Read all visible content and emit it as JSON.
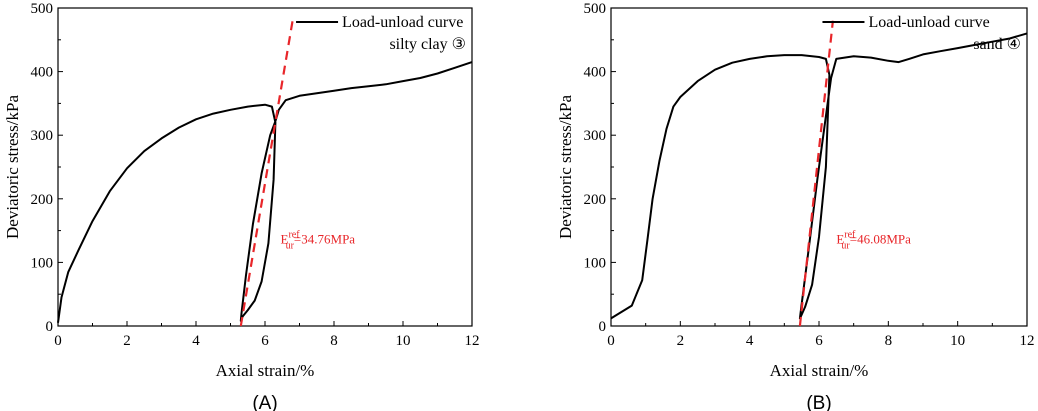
{
  "chart_data": [
    {
      "type": "line",
      "panel_label": "(A)",
      "xlabel": "Axial strain/%",
      "ylabel": "Deviatoric stress/kPa",
      "xlim": [
        0,
        12
      ],
      "ylim": [
        0,
        500
      ],
      "xticks": [
        "0",
        "2",
        "4",
        "6",
        "8",
        "10",
        "12"
      ],
      "yticks": [
        "0",
        "100",
        "200",
        "300",
        "400",
        "500"
      ],
      "grid": false,
      "legend_position": "top-right",
      "legend": [
        "Load-unload curve",
        "silty clay ③"
      ],
      "annotation": {
        "base": "E",
        "sup": "ref",
        "sub": "ur",
        "value": "=34.76MPa",
        "color": "#e8262a"
      },
      "series": [
        {
          "name": "Load-unload curve",
          "color": "#000000",
          "x": [
            0,
            0.1,
            0.3,
            0.6,
            1.0,
            1.5,
            2.0,
            2.5,
            3.0,
            3.5,
            4.0,
            4.5,
            5.0,
            5.5,
            6.0,
            6.2,
            6.3,
            6.25,
            6.1,
            5.9,
            5.7,
            5.5,
            5.35,
            5.3,
            5.32,
            5.45,
            5.65,
            5.9,
            6.15,
            6.3,
            6.4,
            6.6,
            7.0,
            7.5,
            8.0,
            8.5,
            9.0,
            9.5,
            10.0,
            10.5,
            11.0,
            11.5,
            12.0
          ],
          "y": [
            5,
            45,
            85,
            120,
            165,
            212,
            248,
            275,
            295,
            312,
            325,
            334,
            340,
            345,
            348,
            345,
            320,
            230,
            130,
            70,
            40,
            25,
            15,
            8,
            20,
            80,
            160,
            240,
            300,
            322,
            340,
            355,
            362,
            366,
            370,
            374,
            377,
            380,
            385,
            390,
            397,
            406,
            415
          ]
        },
        {
          "name": "tangent",
          "color": "#e8262a",
          "dashed": true,
          "x": [
            5.3,
            6.8
          ],
          "y": [
            0,
            480
          ]
        }
      ]
    },
    {
      "type": "line",
      "panel_label": "(B)",
      "xlabel": "Axial strain/%",
      "ylabel": "Deviatoric stress/kPa",
      "xlim": [
        0,
        12
      ],
      "ylim": [
        0,
        500
      ],
      "xticks": [
        "0",
        "2",
        "4",
        "6",
        "8",
        "10",
        "12"
      ],
      "yticks": [
        "0",
        "100",
        "200",
        "300",
        "400",
        "500"
      ],
      "grid": false,
      "legend_position": "top-right",
      "legend": [
        "Load-unload curve",
        "sand ④"
      ],
      "annotation": {
        "base": "E",
        "sup": "ref",
        "sub": "ur",
        "value": "=46.08MPa",
        "color": "#e8262a"
      },
      "series": [
        {
          "name": "Load-unload curve",
          "color": "#000000",
          "x": [
            0,
            0.3,
            0.6,
            0.9,
            1.05,
            1.2,
            1.4,
            1.6,
            1.8,
            2.0,
            2.5,
            3.0,
            3.5,
            4.0,
            4.5,
            5.0,
            5.5,
            6.0,
            6.2,
            6.3,
            6.2,
            6.0,
            5.8,
            5.6,
            5.5,
            5.45,
            5.5,
            5.7,
            5.95,
            6.2,
            6.35,
            6.5,
            7.0,
            7.5,
            8.0,
            8.3,
            8.6,
            9.0,
            9.5,
            10.0,
            10.5,
            11.0,
            11.5,
            12.0
          ],
          "y": [
            12,
            22,
            32,
            72,
            135,
            200,
            260,
            310,
            345,
            360,
            385,
            403,
            414,
            420,
            424,
            426,
            426,
            423,
            420,
            395,
            250,
            140,
            65,
            30,
            18,
            12,
            35,
            120,
            230,
            330,
            390,
            420,
            424,
            422,
            417,
            415,
            420,
            427,
            432,
            437,
            442,
            447,
            452,
            460
          ]
        },
        {
          "name": "tangent",
          "color": "#e8262a",
          "dashed": true,
          "x": [
            5.45,
            6.4
          ],
          "y": [
            0,
            480
          ]
        }
      ]
    }
  ]
}
